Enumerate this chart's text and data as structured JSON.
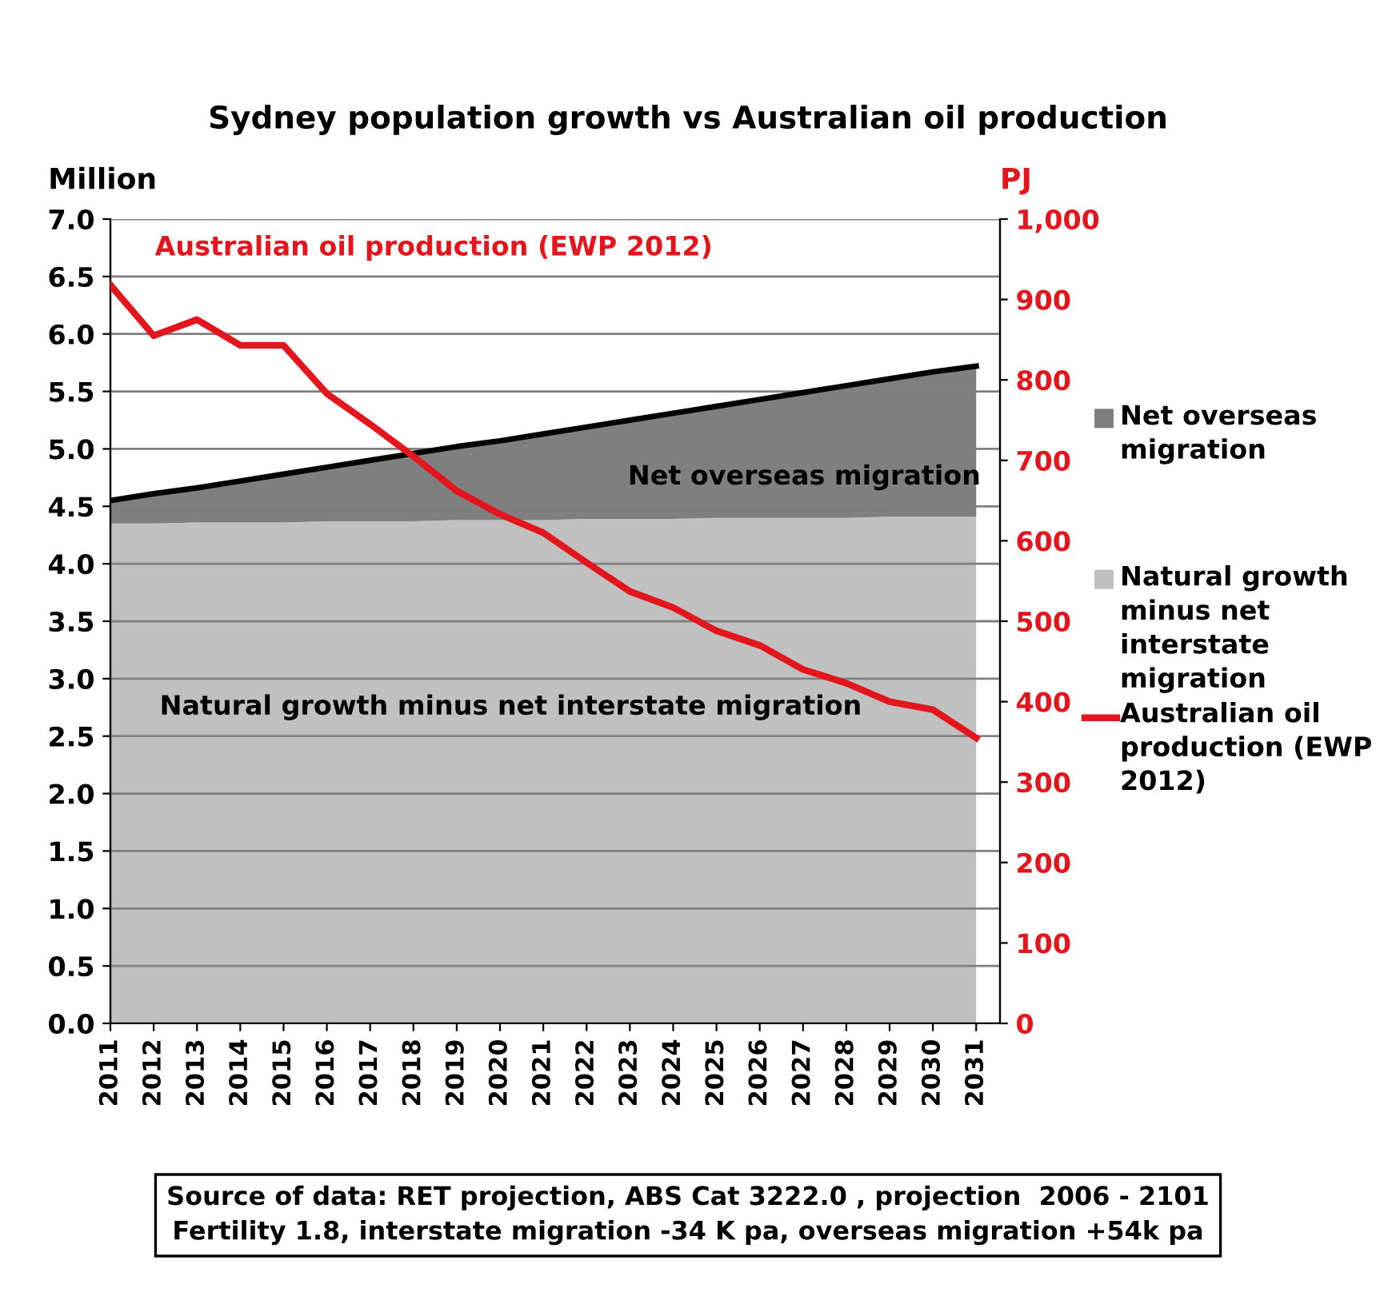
{
  "chart_data": {
    "type": "area",
    "stacked": true,
    "title": "Sydney population growth vs Australian oil production",
    "ylabel": "Million",
    "y2label": "PJ",
    "categories": [
      "2011",
      "2012",
      "2013",
      "2014",
      "2015",
      "2016",
      "2017",
      "2018",
      "2019",
      "2020",
      "2021",
      "2022",
      "2023",
      "2024",
      "2025",
      "2026",
      "2027",
      "2028",
      "2029",
      "2030",
      "2031"
    ],
    "series": [
      {
        "name": "Natural growth minus net interstate migration",
        "color": "#c0c0c0",
        "values": [
          4.35,
          4.35,
          4.36,
          4.36,
          4.36,
          4.37,
          4.37,
          4.37,
          4.38,
          4.38,
          4.38,
          4.39,
          4.39,
          4.39,
          4.4,
          4.4,
          4.4,
          4.4,
          4.41,
          4.41,
          4.41
        ]
      },
      {
        "name": "Net overseas migration",
        "color": "#7f7f7f",
        "values": [
          0.2,
          0.26,
          0.3,
          0.36,
          0.42,
          0.47,
          0.53,
          0.59,
          0.64,
          0.69,
          0.75,
          0.8,
          0.86,
          0.92,
          0.97,
          1.03,
          1.09,
          1.15,
          1.2,
          1.26,
          1.31
        ]
      },
      {
        "name": "Australian oil production (EWP 2012)",
        "type": "line",
        "axis": "y2",
        "color": "#e3161e",
        "values": [
          918,
          855,
          875,
          843,
          843,
          783,
          745,
          705,
          662,
          633,
          610,
          573,
          537,
          517,
          488,
          470,
          440,
          423,
          400,
          390,
          355
        ]
      }
    ],
    "ylim": [
      0.0,
      7.0
    ],
    "yticks": [
      {
        "value": 0,
        "label": "0.0"
      },
      0.5,
      {
        "value": 1,
        "label": "1.0"
      },
      1.5,
      {
        "value": 2,
        "label": "2.0"
      },
      2.5,
      {
        "value": 3,
        "label": "3.0"
      },
      3.5,
      {
        "value": 4,
        "label": "4.0"
      },
      4.5,
      {
        "value": 5,
        "label": "5.0"
      },
      5.5,
      {
        "value": 6,
        "label": "6.0"
      },
      6.5,
      {
        "value": 7,
        "label": "7.0"
      }
    ],
    "y2lim": [
      0,
      1000
    ],
    "y2ticks": [
      0,
      100,
      200,
      300,
      400,
      500,
      600,
      700,
      800,
      900,
      {
        "value": 1000,
        "label": "1,000"
      }
    ],
    "grid": "y",
    "legend": "right",
    "annotations": [
      "Australian oil production (EWP 2012)",
      "Net overseas migration",
      "Natural growth minus net interstate migration",
      "Source of data: RET projection, ABS Cat 3222.0 , projection  2006 - 2101\nFertility 1.8, interstate migration -34 K pa, overseas migration +54k pa"
    ]
  }
}
